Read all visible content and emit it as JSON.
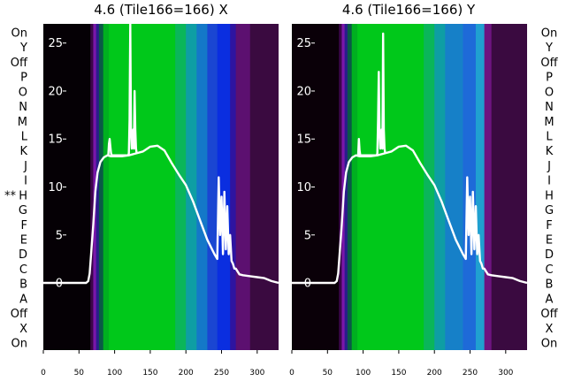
{
  "chart_data": [
    {
      "type": "heatmap",
      "title": "4.6 (Tile166=166) X",
      "xlim": [
        0,
        330
      ],
      "ylim": [
        -7,
        27
      ],
      "x_ticks": [
        0,
        50,
        100,
        150,
        200,
        250,
        300
      ],
      "y_ticks": [
        0,
        5,
        10,
        15,
        20,
        25
      ],
      "row_labels": [
        "On",
        "Y",
        "Off",
        "P",
        "O",
        "N",
        "M",
        "L",
        "K",
        "J",
        "I",
        "H",
        "G",
        "F",
        "E",
        "D",
        "C",
        "B",
        "A",
        "Off",
        "X",
        "On"
      ],
      "row_marker": {
        "row": "H",
        "text": "**"
      },
      "label_side": "left",
      "spectrum_bands": [
        {
          "x0": 0,
          "x1": 66,
          "color": "#050005"
        },
        {
          "x0": 66,
          "x1": 70,
          "color": "#3a0648"
        },
        {
          "x0": 70,
          "x1": 74,
          "color": "#7a16aa"
        },
        {
          "x0": 74,
          "x1": 78,
          "color": "#2a1c8c"
        },
        {
          "x0": 78,
          "x1": 84,
          "color": "#0a5a46"
        },
        {
          "x0": 84,
          "x1": 92,
          "color": "#00b020"
        },
        {
          "x0": 92,
          "x1": 185,
          "color": "#00c81a"
        },
        {
          "x0": 185,
          "x1": 200,
          "color": "#0ab65a"
        },
        {
          "x0": 200,
          "x1": 215,
          "color": "#0e9ea4"
        },
        {
          "x0": 215,
          "x1": 230,
          "color": "#1478c8"
        },
        {
          "x0": 230,
          "x1": 244,
          "color": "#1a46d2"
        },
        {
          "x0": 244,
          "x1": 262,
          "color": "#0a2ee0"
        },
        {
          "x0": 262,
          "x1": 270,
          "color": "#2e14a0"
        },
        {
          "x0": 270,
          "x1": 290,
          "color": "#5c1070"
        },
        {
          "x0": 290,
          "x1": 330,
          "color": "#3a0a40"
        }
      ],
      "series": [
        {
          "values_x": [
            0,
            40,
            60,
            63,
            65,
            67,
            70,
            73,
            76,
            80,
            85,
            90,
            95,
            100,
            110,
            120,
            130,
            140,
            150,
            160,
            170,
            180,
            190,
            200,
            210,
            220,
            230,
            240,
            244,
            246,
            248,
            250,
            252,
            254,
            256,
            258,
            260,
            262,
            264,
            266,
            268,
            270,
            275,
            280,
            290,
            300,
            310,
            320,
            330
          ],
          "values_y": [
            0,
            0,
            0,
            0.2,
            1,
            3,
            6,
            9.5,
            11.5,
            12.6,
            13.1,
            13.3,
            13.2,
            13.2,
            13.2,
            13.3,
            13.5,
            13.7,
            14.2,
            14.3,
            13.8,
            12.5,
            11.3,
            10.2,
            8.5,
            6.5,
            4.5,
            3,
            2.5,
            11,
            5,
            9,
            3,
            9.5,
            3.5,
            8,
            3,
            5,
            2.3,
            2,
            1.5,
            1.5,
            0.9,
            0.8,
            0.7,
            0.6,
            0.5,
            0.2,
            0
          ]
        },
        {
          "values_x": [
            91,
            92,
            93,
            94,
            95,
            96,
            97,
            98,
            119,
            120,
            121,
            122,
            123,
            124,
            125,
            126,
            127,
            128,
            129,
            130,
            131
          ],
          "values_y": [
            13.2,
            14.5,
            15,
            14.2,
            13.5,
            13.3,
            13.3,
            13.3,
            13.3,
            13.5,
            17,
            27,
            16,
            14,
            15,
            16,
            14,
            20,
            16,
            14,
            13.5
          ]
        }
      ]
    },
    {
      "type": "heatmap",
      "title": "4.6 (Tile166=166) Y",
      "xlim": [
        0,
        330
      ],
      "ylim": [
        -7,
        27
      ],
      "x_ticks": [
        0,
        50,
        100,
        150,
        200,
        250,
        300
      ],
      "y_ticks": [
        0,
        5,
        10,
        15,
        20,
        25
      ],
      "row_labels": [
        "On",
        "Y",
        "Off",
        "P",
        "O",
        "N",
        "M",
        "L",
        "K",
        "J",
        "I",
        "H",
        "G",
        "F",
        "E",
        "D",
        "C",
        "B",
        "A",
        "Off",
        "X",
        "On"
      ],
      "label_side": "right",
      "spectrum_bands": [
        {
          "x0": 0,
          "x1": 66,
          "color": "#0a0008"
        },
        {
          "x0": 66,
          "x1": 70,
          "color": "#3a0648"
        },
        {
          "x0": 70,
          "x1": 74,
          "color": "#7a16aa"
        },
        {
          "x0": 74,
          "x1": 78,
          "color": "#2a1c8c"
        },
        {
          "x0": 78,
          "x1": 84,
          "color": "#0a5a46"
        },
        {
          "x0": 84,
          "x1": 92,
          "color": "#00b020"
        },
        {
          "x0": 92,
          "x1": 185,
          "color": "#00c81a"
        },
        {
          "x0": 185,
          "x1": 200,
          "color": "#0ab65a"
        },
        {
          "x0": 200,
          "x1": 215,
          "color": "#0e9ea4"
        },
        {
          "x0": 215,
          "x1": 240,
          "color": "#1680c8"
        },
        {
          "x0": 240,
          "x1": 258,
          "color": "#1e6ad8"
        },
        {
          "x0": 258,
          "x1": 270,
          "color": "#20a0d0"
        },
        {
          "x0": 270,
          "x1": 280,
          "color": "#6e1480"
        },
        {
          "x0": 280,
          "x1": 330,
          "color": "#3a0a40"
        }
      ],
      "series": [
        {
          "values_x": [
            0,
            40,
            60,
            63,
            65,
            67,
            70,
            73,
            76,
            80,
            85,
            90,
            95,
            100,
            110,
            120,
            130,
            140,
            150,
            160,
            170,
            180,
            190,
            200,
            210,
            220,
            230,
            240,
            244,
            246,
            248,
            250,
            252,
            254,
            256,
            258,
            260,
            262,
            264,
            266,
            268,
            270,
            275,
            280,
            290,
            300,
            310,
            320,
            330
          ],
          "values_y": [
            0,
            0,
            0,
            0.2,
            1,
            3,
            6,
            9.5,
            11.5,
            12.6,
            13.1,
            13.3,
            13.2,
            13.2,
            13.2,
            13.3,
            13.5,
            13.7,
            14.2,
            14.3,
            13.8,
            12.5,
            11.3,
            10.2,
            8.5,
            6.5,
            4.5,
            3,
            2.5,
            11,
            5,
            9,
            3,
            9.5,
            3.5,
            8,
            3,
            5,
            2.3,
            2,
            1.5,
            1.5,
            0.9,
            0.8,
            0.7,
            0.6,
            0.5,
            0.2,
            0
          ]
        },
        {
          "values_x": [
            93,
            94,
            95,
            96,
            97,
            98,
            119,
            120,
            121,
            122,
            123,
            124,
            125,
            126,
            127,
            128,
            129,
            130,
            131
          ],
          "values_y": [
            13.3,
            15,
            13.8,
            13.3,
            13.3,
            13.3,
            13.3,
            13.5,
            17,
            22,
            16,
            14,
            15,
            16,
            14,
            26,
            16,
            14,
            13.5
          ]
        }
      ]
    }
  ]
}
